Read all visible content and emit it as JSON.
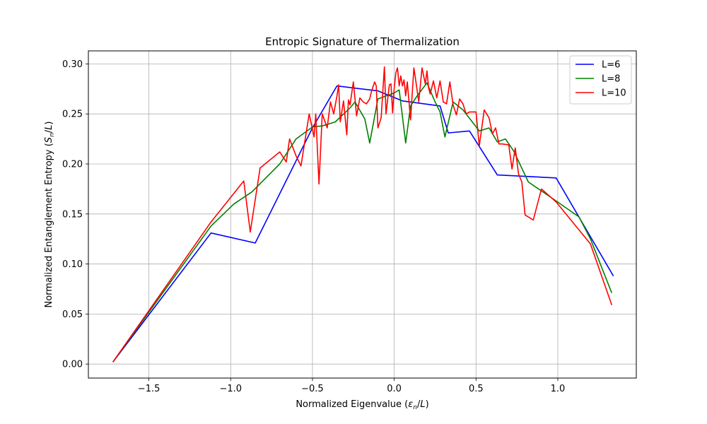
{
  "chart_data": {
    "type": "line",
    "title": "Entropic Signature of Thermalization",
    "xlabel_parts": [
      "Normalized Eigenvalue (",
      "ε",
      "n",
      "/",
      "L",
      ")"
    ],
    "ylabel_parts": [
      "Normalized Entanglement Entropy (",
      "S",
      "n",
      "/",
      "L",
      ")"
    ],
    "xlim": [
      -1.87,
      1.48
    ],
    "ylim": [
      -0.014,
      0.313
    ],
    "xticks": [
      -1.5,
      -1.0,
      -0.5,
      0.0,
      0.5,
      1.0
    ],
    "xtick_labels": [
      "−1.5",
      "−1.0",
      "−0.5",
      "0.0",
      "0.5",
      "1.0"
    ],
    "yticks": [
      0.0,
      0.05,
      0.1,
      0.15,
      0.2,
      0.25,
      0.3
    ],
    "ytick_labels": [
      "0.00",
      "0.05",
      "0.10",
      "0.15",
      "0.20",
      "0.25",
      "0.30"
    ],
    "grid": true,
    "legend_position": "top-right",
    "series": [
      {
        "name": "L=6",
        "color": "#0000ff",
        "x": [
          -1.72,
          -1.12,
          -0.85,
          -0.5,
          -0.35,
          -0.1,
          0.05,
          0.28,
          0.33,
          0.46,
          0.63,
          0.99,
          1.34
        ],
        "y": [
          0.002,
          0.131,
          0.121,
          0.236,
          0.278,
          0.273,
          0.263,
          0.258,
          0.231,
          0.233,
          0.189,
          0.186,
          0.088
        ]
      },
      {
        "name": "L=8",
        "color": "#008000",
        "x": [
          -1.72,
          -1.12,
          -0.98,
          -0.87,
          -0.7,
          -0.6,
          -0.5,
          -0.44,
          -0.36,
          -0.27,
          -0.24,
          -0.18,
          -0.15,
          -0.1,
          -0.05,
          0.0,
          0.03,
          0.07,
          0.1,
          0.14,
          0.2,
          0.25,
          0.28,
          0.31,
          0.36,
          0.42,
          0.52,
          0.58,
          0.63,
          0.68,
          0.73,
          0.82,
          0.99,
          1.13,
          1.2,
          1.33
        ],
        "y": [
          0.002,
          0.138,
          0.16,
          0.172,
          0.2,
          0.225,
          0.237,
          0.238,
          0.242,
          0.256,
          0.262,
          0.245,
          0.221,
          0.265,
          0.268,
          0.271,
          0.274,
          0.221,
          0.258,
          0.268,
          0.281,
          0.262,
          0.252,
          0.227,
          0.262,
          0.254,
          0.233,
          0.236,
          0.222,
          0.225,
          0.213,
          0.182,
          0.163,
          0.147,
          0.125,
          0.071
        ]
      },
      {
        "name": "L=10",
        "color": "#ff0000",
        "x": [
          -1.72,
          -1.12,
          -0.92,
          -0.88,
          -0.82,
          -0.7,
          -0.66,
          -0.64,
          -0.6,
          -0.57,
          -0.52,
          -0.49,
          -0.48,
          -0.46,
          -0.44,
          -0.41,
          -0.39,
          -0.37,
          -0.35,
          -0.34,
          -0.33,
          -0.31,
          -0.29,
          -0.28,
          -0.27,
          -0.25,
          -0.23,
          -0.21,
          -0.19,
          -0.17,
          -0.15,
          -0.14,
          -0.12,
          -0.11,
          -0.1,
          -0.08,
          -0.06,
          -0.05,
          -0.03,
          -0.02,
          -0.01,
          0.0,
          0.01,
          0.02,
          0.03,
          0.04,
          0.05,
          0.06,
          0.07,
          0.08,
          0.1,
          0.12,
          0.13,
          0.15,
          0.17,
          0.19,
          0.2,
          0.21,
          0.22,
          0.24,
          0.26,
          0.28,
          0.3,
          0.32,
          0.34,
          0.36,
          0.38,
          0.4,
          0.42,
          0.44,
          0.46,
          0.48,
          0.5,
          0.52,
          0.55,
          0.58,
          0.6,
          0.62,
          0.64,
          0.66,
          0.7,
          0.72,
          0.74,
          0.76,
          0.78,
          0.8,
          0.85,
          0.9,
          0.99,
          1.2,
          1.33
        ],
        "y": [
          0.002,
          0.142,
          0.183,
          0.132,
          0.196,
          0.212,
          0.202,
          0.225,
          0.208,
          0.198,
          0.25,
          0.227,
          0.25,
          0.18,
          0.25,
          0.236,
          0.262,
          0.25,
          0.268,
          0.279,
          0.242,
          0.263,
          0.229,
          0.264,
          0.259,
          0.282,
          0.248,
          0.266,
          0.262,
          0.26,
          0.265,
          0.272,
          0.282,
          0.278,
          0.236,
          0.246,
          0.297,
          0.25,
          0.279,
          0.28,
          0.251,
          0.276,
          0.291,
          0.296,
          0.278,
          0.288,
          0.278,
          0.284,
          0.268,
          0.282,
          0.244,
          0.296,
          0.285,
          0.262,
          0.296,
          0.28,
          0.293,
          0.276,
          0.27,
          0.283,
          0.266,
          0.283,
          0.262,
          0.26,
          0.282,
          0.259,
          0.249,
          0.265,
          0.26,
          0.25,
          0.252,
          0.252,
          0.252,
          0.218,
          0.254,
          0.246,
          0.23,
          0.236,
          0.22,
          0.22,
          0.219,
          0.195,
          0.216,
          0.19,
          0.182,
          0.149,
          0.144,
          0.175,
          0.162,
          0.12,
          0.059
        ]
      }
    ]
  }
}
